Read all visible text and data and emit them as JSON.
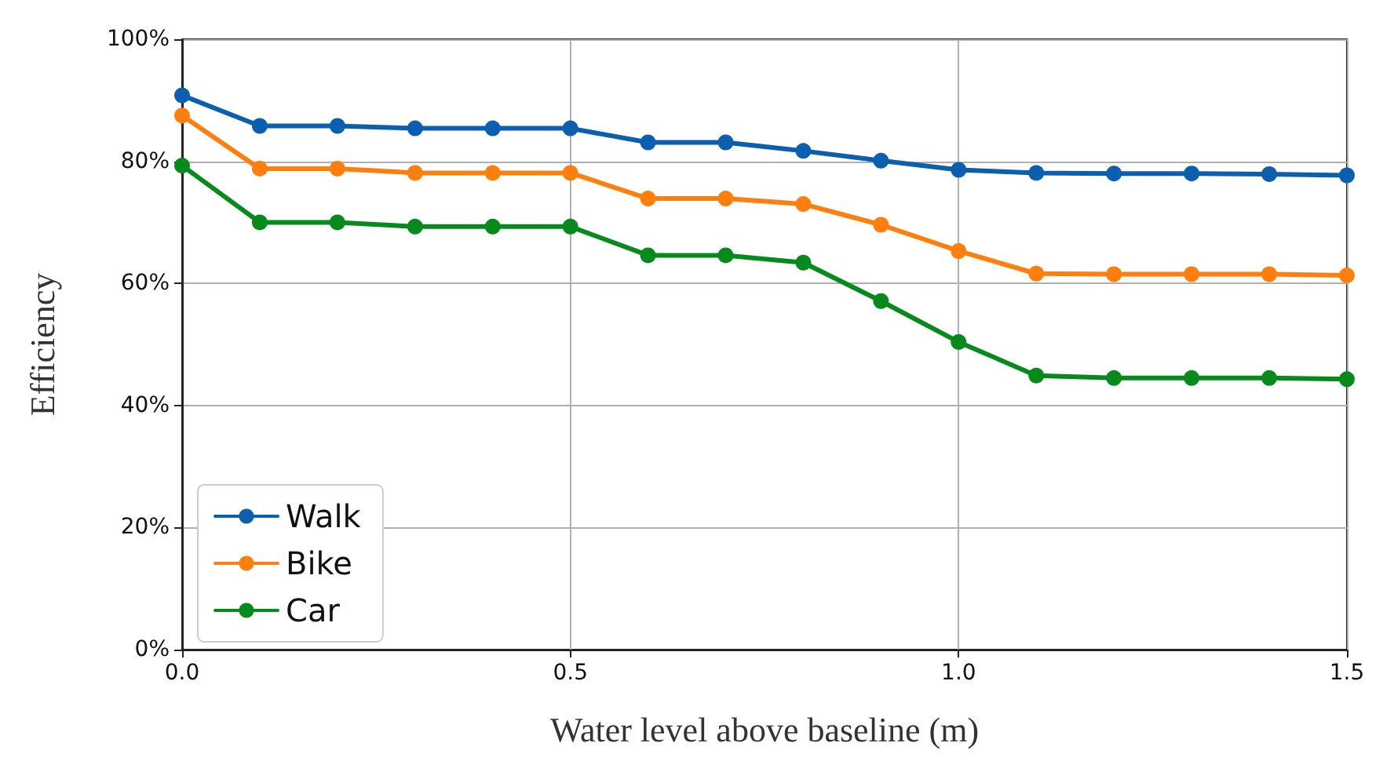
{
  "chart_data": {
    "type": "line",
    "xlabel": "Water level above baseline (m)",
    "ylabel": "Efficiency",
    "x": [
      0,
      0.1,
      0.2,
      0.3,
      0.4,
      0.5,
      0.6,
      0.7,
      0.8,
      0.9,
      1.0,
      1.1,
      1.2,
      1.3,
      1.4,
      1.5
    ],
    "series": [
      {
        "name": "Walk",
        "color": "#0b5fae",
        "values": [
          90.8,
          85.8,
          85.8,
          85.4,
          85.4,
          85.4,
          83.1,
          83.1,
          81.7,
          80.1,
          78.6,
          78.1,
          78.0,
          78.0,
          77.9,
          77.7
        ]
      },
      {
        "name": "Bike",
        "color": "#ff7f0e",
        "values": [
          87.5,
          78.8,
          78.8,
          78.1,
          78.1,
          78.1,
          73.9,
          73.9,
          73.0,
          69.6,
          65.3,
          61.6,
          61.5,
          61.5,
          61.5,
          61.3
        ]
      },
      {
        "name": "Car",
        "color": "#078a1c",
        "values": [
          79.3,
          70.0,
          70.0,
          69.3,
          69.3,
          69.3,
          64.6,
          64.6,
          63.4,
          57.1,
          50.4,
          44.9,
          44.5,
          44.5,
          44.5,
          44.3
        ]
      }
    ],
    "xlim": [
      0,
      1.5
    ],
    "xticks": [
      {
        "value": 0,
        "label": "0.0"
      },
      0.5,
      {
        "value": 1,
        "label": "1.0"
      },
      1.5
    ],
    "ylim": [
      0,
      100
    ],
    "yticks": [
      {
        "value": 0,
        "label": "0%"
      },
      {
        "value": 20,
        "label": "20%"
      },
      {
        "value": 40,
        "label": "40%"
      },
      {
        "value": 60,
        "label": "60%"
      },
      {
        "value": 80,
        "label": "80%"
      },
      {
        "value": 100,
        "label": "100%"
      }
    ],
    "grid": true,
    "legend": "bottom left",
    "marker": "circle",
    "line_style": "solid"
  }
}
